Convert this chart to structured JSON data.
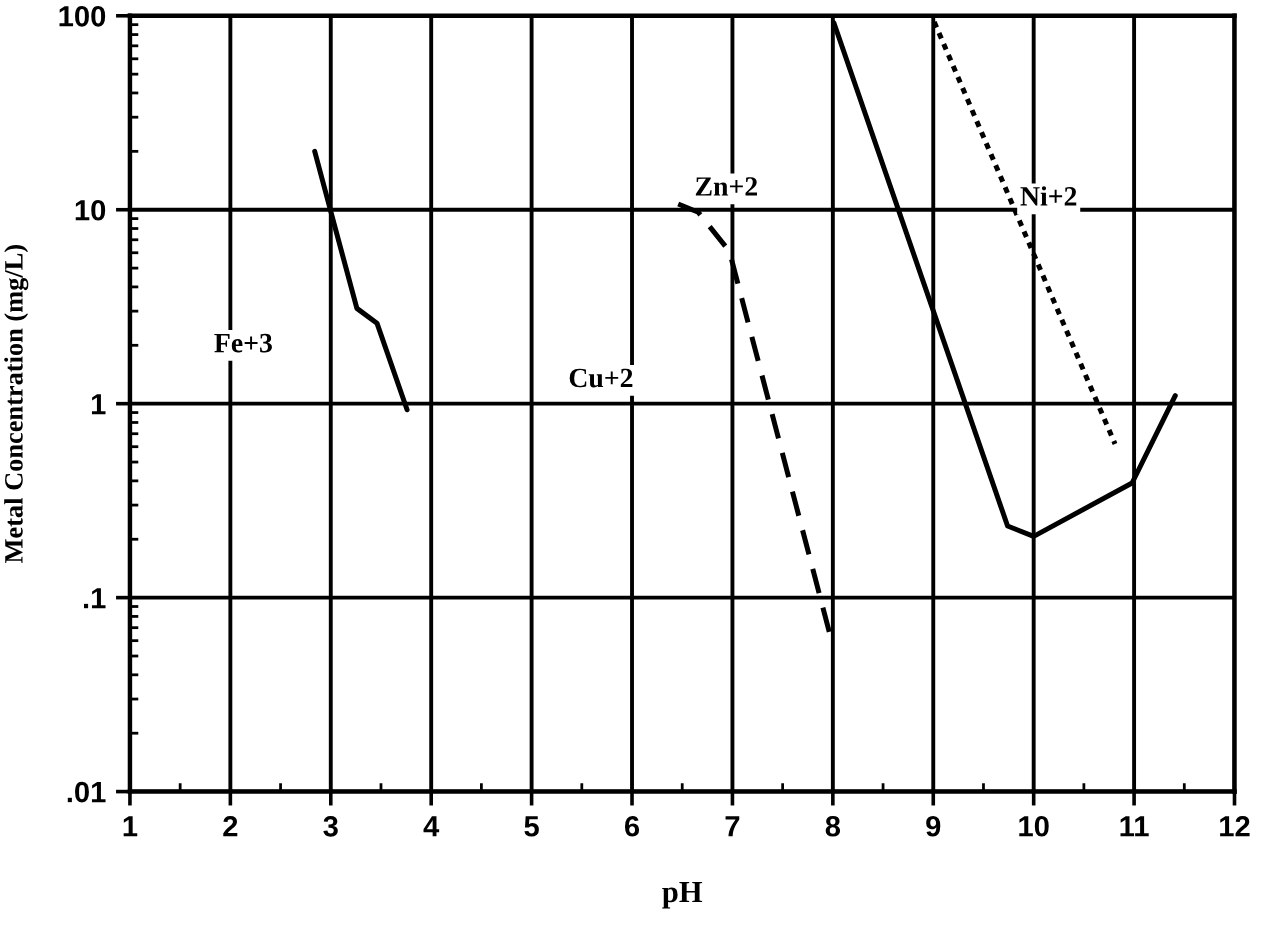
{
  "chart_data": {
    "type": "line",
    "xlabel": "pH",
    "ylabel": "Metal Concentration (mg/L)",
    "log": "y",
    "grid": true,
    "legend": false,
    "marker": "none",
    "xlim": [
      1,
      12
    ],
    "ylim": [
      0.01,
      100
    ],
    "xticks": [
      1,
      {
        "value": 1.5,
        "label": null
      },
      2,
      {
        "value": 2.5,
        "label": null
      },
      3,
      {
        "value": 3.5,
        "label": null
      },
      4,
      {
        "value": 4.5,
        "label": null
      },
      5,
      {
        "value": 5.5,
        "label": null
      },
      6,
      {
        "value": 6.5,
        "label": null
      },
      7,
      {
        "value": 7.5,
        "label": null
      },
      8,
      {
        "value": 8.5,
        "label": null
      },
      9,
      {
        "value": 9.5,
        "label": null
      },
      10,
      {
        "value": 10.5,
        "label": null
      },
      11,
      {
        "value": 11.5,
        "label": null
      },
      12
    ],
    "yticks": [
      {
        "value": 0.01,
        "label": ".01"
      },
      {
        "value": 0.1,
        "label": ".1"
      },
      1,
      10,
      100
    ],
    "series": [
      {
        "color": "#000000",
        "line_style": "solid",
        "x": [
          2.84,
          3.04,
          3.26,
          3.46,
          3.76
        ],
        "values": [
          20,
          8.2,
          3.1,
          2.6,
          0.93
        ]
      },
      {
        "name": "Zn+2",
        "color": "#000000",
        "line_style": "dashed",
        "x": [
          6.46,
          6.66,
          6.97,
          7.98
        ],
        "values": [
          10.7,
          9.7,
          6.1,
          0.062
        ]
      },
      {
        "color": "#000000",
        "line_style": "solid",
        "x": [
          8.01,
          9.74,
          10.0,
          10.98,
          11.41
        ],
        "values": [
          92,
          0.234,
          0.207,
          0.39,
          1.1
        ]
      },
      {
        "name": "Ni+2",
        "color": "#000000",
        "line_style": "dotted",
        "x": [
          9.01,
          10.81
        ],
        "values": [
          93,
          0.62
        ]
      }
    ],
    "annotations": [
      "Fe+3",
      "Cu+2"
    ]
  }
}
